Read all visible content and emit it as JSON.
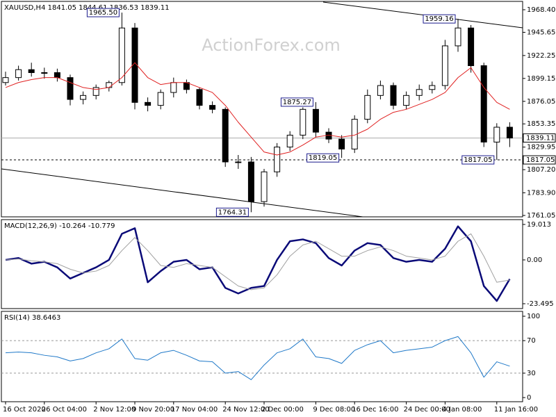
{
  "watermark": "ActionForex.com",
  "chart_data": [
    {
      "type": "candlestick",
      "title": "XAUUSD,H4  1841.05 1844.61 1836.53 1839.11",
      "ylim": [
        1759.65,
        1976.8
      ],
      "yticks": [
        {
          "value": 1968.4,
          "label": "1968.40"
        },
        {
          "value": 1945.65,
          "label": "1945.65"
        },
        {
          "value": 1922.25,
          "label": "1922.25"
        },
        {
          "value": 1899.15,
          "label": "1899.15"
        },
        {
          "value": 1876.05,
          "label": "1876.05"
        },
        {
          "value": 1853.35,
          "label": "1853.35"
        },
        {
          "value": 1829.95,
          "label": "1829.95"
        },
        {
          "value": 1807.2,
          "label": "1807.20"
        },
        {
          "value": 1783.9,
          "label": "1783.90"
        },
        {
          "value": 1761.05,
          "label": "1761.05"
        }
      ],
      "open": [
        1895,
        1900,
        1908,
        1905,
        1905,
        1900,
        1878,
        1882,
        1890,
        1895,
        1950,
        1875,
        1872,
        1885,
        1895,
        1888,
        1872,
        1868,
        1815,
        1815,
        1775,
        1805,
        1830,
        1842,
        1868,
        1845,
        1838,
        1828,
        1858,
        1882,
        1892,
        1872,
        1882,
        1888,
        1892,
        1932,
        1950,
        1912,
        1835,
        1850
      ],
      "high": [
        1906,
        1912,
        1915,
        1910,
        1909,
        1903,
        1886,
        1893,
        1897,
        1965.5,
        1955,
        1880,
        1888,
        1900,
        1898,
        1890,
        1876,
        1870,
        1822,
        1820,
        1808,
        1834,
        1846,
        1870,
        1875.27,
        1849,
        1842,
        1862,
        1888,
        1897,
        1895,
        1886,
        1893,
        1896,
        1938,
        1959.16,
        1953,
        1915,
        1854,
        1855
      ],
      "low": [
        1892,
        1897,
        1901,
        1899,
        1896,
        1872,
        1873,
        1878,
        1886,
        1892,
        1868,
        1866,
        1868,
        1880,
        1884,
        1868,
        1864,
        1810,
        1808,
        1764.31,
        1770,
        1800,
        1826,
        1838,
        1840,
        1834,
        1819.05,
        1824,
        1854,
        1878,
        1868,
        1868,
        1877,
        1884,
        1888,
        1926,
        1905,
        1830,
        1817.05,
        1830
      ],
      "close": [
        1900,
        1908,
        1905,
        1905,
        1900,
        1878,
        1882,
        1890,
        1895,
        1950,
        1875,
        1872,
        1885,
        1895,
        1888,
        1872,
        1868,
        1815,
        1815,
        1775,
        1805,
        1830,
        1842,
        1868,
        1845,
        1838,
        1828,
        1858,
        1882,
        1892,
        1872,
        1882,
        1888,
        1892,
        1932,
        1950,
        1912,
        1835,
        1850,
        1839.11
      ],
      "series": [
        {
          "color": "#e02020",
          "values": [
            1890,
            1895,
            1898,
            1900,
            1900,
            1895,
            1890,
            1888,
            1890,
            1900,
            1915,
            1900,
            1893,
            1895,
            1895,
            1890,
            1885,
            1872,
            1855,
            1840,
            1825,
            1822,
            1825,
            1832,
            1840,
            1842,
            1840,
            1842,
            1848,
            1858,
            1865,
            1868,
            1873,
            1878,
            1885,
            1900,
            1910,
            1890,
            1875,
            1868
          ]
        }
      ],
      "annotations": [
        {
          "value": 1965.5,
          "label": "1965.50",
          "index": 9
        },
        {
          "value": 1959.16,
          "label": "1959.16",
          "index": 35
        },
        {
          "value": 1875.27,
          "label": "1875.27",
          "index": 24
        },
        {
          "value": 1819.05,
          "label": "1819.05",
          "index": 26
        },
        {
          "value": 1817.05,
          "label": "1817.05",
          "index": 38
        },
        {
          "value": 1764.31,
          "label": "1764.31",
          "index": 19
        }
      ],
      "price_labels": [
        {
          "value": 1839.11,
          "label": "1839.11",
          "line_style": "solid"
        },
        {
          "value": 1817.05,
          "label": "1817.05",
          "line_style": "dashed"
        }
      ]
    },
    {
      "type": "line",
      "title": "MACD(12,26,9) -10.264 -10.779",
      "ylim": [
        -26.1,
        21.6
      ],
      "yticks": [
        19.013,
        {
          "value": 0,
          "label": "0.00"
        },
        -23.495
      ],
      "series": [
        {
          "color": "#0a0a78",
          "width": 2.5,
          "values": [
            0,
            1,
            -2,
            -1,
            -4,
            -10,
            -7,
            -4,
            0,
            14,
            17,
            -12,
            -6,
            -1,
            0,
            -5,
            -4,
            -15,
            -18,
            -15,
            -14,
            0,
            10,
            11,
            9,
            1,
            -3,
            5,
            9,
            8,
            1,
            -1,
            0,
            -1,
            6,
            18,
            10,
            -14,
            -22,
            -10.264
          ]
        },
        {
          "color": "#a0a0a0",
          "width": 1,
          "values": [
            0,
            0.5,
            -0.5,
            -1,
            -2,
            -5,
            -7,
            -6,
            -3,
            5,
            12,
            5,
            -3,
            -4,
            -2,
            -3,
            -4,
            -9,
            -14,
            -16,
            -15,
            -8,
            2,
            8,
            10,
            6,
            2,
            2,
            5,
            7,
            5,
            2,
            1,
            0,
            2,
            10,
            14,
            2,
            -12,
            -10.779
          ]
        }
      ]
    },
    {
      "type": "line",
      "title": "RSI(14) 38.6463",
      "ylim": [
        -5.1,
        106
      ],
      "yticks": [
        100,
        70,
        30,
        0
      ],
      "levels": [
        70,
        30
      ],
      "series": [
        {
          "color": "#1e78c8",
          "width": 1,
          "values": [
            55,
            56,
            55,
            52,
            50,
            45,
            48,
            55,
            60,
            72,
            48,
            46,
            55,
            58,
            52,
            45,
            44,
            30,
            32,
            22,
            40,
            55,
            60,
            72,
            50,
            48,
            42,
            58,
            65,
            70,
            55,
            58,
            60,
            62,
            70,
            75,
            55,
            25,
            44,
            38.6463
          ]
        }
      ],
      "categories": [
        "16 Oct 2020",
        null,
        null,
        "26 Oct 04:00",
        null,
        null,
        null,
        "2 Nov 12:00",
        null,
        null,
        "9 Nov 20:00",
        null,
        null,
        "17 Nov 04:00",
        null,
        null,
        null,
        "24 Nov 12:00",
        null,
        null,
        "2 Dec 00:00",
        null,
        null,
        null,
        "9 Dec 08:00",
        null,
        null,
        "16 Dec 16:00",
        null,
        null,
        null,
        "24 Dec 00:00",
        null,
        null,
        "4 Jan 08:00",
        null,
        null,
        null,
        "11 Jan 16:00",
        null
      ]
    }
  ]
}
